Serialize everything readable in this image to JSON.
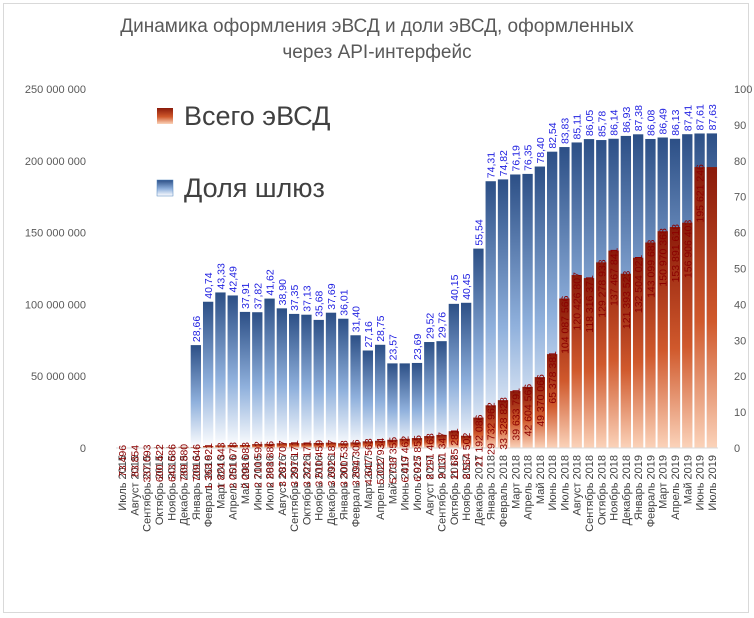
{
  "chart_data": {
    "type": "bar",
    "title_line1": "Динамика оформления эВСД и доли эВСД, оформленных",
    "title_line2": "через API-интерфейс",
    "legend": [
      "Всего эВСД",
      "Доля шлюз"
    ],
    "legend_placement": "top-left",
    "grid": false,
    "y_left": {
      "ylim": [
        0,
        250000000
      ],
      "ticks": [
        "0",
        "50 000 000",
        "100 000 000",
        "150 000 000",
        "200 000 000",
        "250 000 000"
      ]
    },
    "y_right": {
      "ylim": [
        0,
        100
      ],
      "ticks": [
        "0",
        "10",
        "20",
        "30",
        "40",
        "50",
        "60",
        "70",
        "80",
        "90",
        "100"
      ]
    },
    "categories": [
      "Июль 2015",
      "Август 2015",
      "Сентябрь 2015",
      "Октябрь 2015",
      "Ноябрь 2015",
      "Декабрь 2015",
      "Январь 2016",
      "Февраль 2016",
      "Март 2016",
      "Апрель 2016",
      "Май 2016",
      "Июнь 2016",
      "Июль 2016",
      "Август 2016",
      "Сентябрь 2016",
      "Октябрь 2016",
      "Ноябрь 2016",
      "Декабрь 2016",
      "Январь 2017",
      "Февраль 2017",
      "Март 2017",
      "Апрель 2017",
      "Май 2017",
      "Июнь 2017",
      "Июль 2017",
      "Август 2017",
      "Сентябрь 2017",
      "Октябрь 2017",
      "Ноябрь 2017",
      "Декабрь 2017",
      "Январь 2018",
      "Февраль 2018",
      "Март 2018",
      "Апрель 2018",
      "Май 2018",
      "Июнь 2018",
      "Июль 2018",
      "Август 2018",
      "Сентябрь 2018",
      "Октябрь 2018",
      "Ноябрь 2018",
      "Декабрь 2018",
      "Январь 2019",
      "Февраль 2019",
      "Март 2019",
      "Апрель 2019",
      "Май 2019",
      "Июнь 2019",
      "Июль 2019"
    ],
    "series": [
      {
        "name": "Всего эВСД",
        "axis": "left",
        "color": "#c0504d",
        "values": [
          73496,
          83854,
          337093,
          600422,
          643686,
          789880,
          709646,
          1363921,
          1824343,
          2051078,
          2098083,
          2710592,
          2888886,
          3287707,
          3397171,
          3322171,
          3510459,
          3692187,
          3300538,
          3894306,
          4647563,
          5022934,
          5738355,
          6419462,
          6925855,
          8291463,
          9131347,
          11685281,
          8564502,
          21192086,
          29732962,
          33328828,
          39633791,
          42604566,
          49370066,
          65378381,
          104087566,
          120426807,
          118316371,
          129278933,
          137467841,
          121393523,
          132504021,
          143099683,
          150970368,
          153891618,
          156906403,
          195621246,
          195621246
        ],
        "labels": [
          "73 496",
          "83 854",
          "337 093",
          "600 422",
          "643 686",
          "789 880",
          "709 646",
          "1 363 921",
          "1 824 343",
          "2 051 078",
          "2 098 083",
          "2 710 592",
          "2 888 886",
          "3 287 707",
          "3 397 171",
          "3 322 171",
          "3 510 459",
          "3 692 187",
          "3 300 538",
          "3 894 306",
          "4 647 563",
          "5 022 934",
          "5 738 355",
          "6 419 462",
          "6 925 855",
          "8 291 463",
          "9 131 347",
          "11 685 281",
          "8 564 502",
          "21 192 086",
          "29 732 962",
          "33 328 828",
          "39 633 791",
          "42 604 566",
          "49 370 066",
          "65 378 381",
          "104 087 566",
          "120 426 807",
          "118 316 371",
          "129 278 933",
          "137 467 841",
          "121 393 523",
          "132 504 021",
          "143 099 683",
          "150 970 368",
          "153 891 618",
          "156 906 403",
          "195 621 246",
          ""
        ]
      },
      {
        "name": "Доля шлюз",
        "axis": "right",
        "color": "#4f81bd",
        "values": [
          null,
          null,
          null,
          null,
          null,
          null,
          28.66,
          40.74,
          43.33,
          42.49,
          37.91,
          37.82,
          41.62,
          38.9,
          37.35,
          37.13,
          35.68,
          37.69,
          36.01,
          31.4,
          27.16,
          28.75,
          23.57,
          23.57,
          23.69,
          29.52,
          29.76,
          40.15,
          40.45,
          55.54,
          74.31,
          74.82,
          76.19,
          76.35,
          78.4,
          82.54,
          83.83,
          85.11,
          86.05,
          85.78,
          86.14,
          86.93,
          87.38,
          86.08,
          86.49,
          86.13,
          87.41,
          87.61,
          87.63
        ],
        "labels": [
          "",
          "",
          "",
          "",
          "",
          "",
          "28,66",
          "40,74",
          "43,33",
          "42,49",
          "37,91",
          "37,82",
          "41,62",
          "38,90",
          "37,35",
          "37,13",
          "35,68",
          "37,69",
          "36,01",
          "31,40",
          "27,16",
          "28,75",
          "23,57",
          "",
          "23,69",
          "29,52",
          "29,76",
          "40,15",
          "40,45",
          "55,54",
          "74,31",
          "74,82",
          "76,19",
          "76,35",
          "78,40",
          "82,54",
          "83,83",
          "85,11",
          "86,05",
          "85,78",
          "86,14",
          "86,93",
          "87,38",
          "86,08",
          "86,49",
          "86,13",
          "87,41",
          "87,61",
          "87,63"
        ]
      }
    ]
  }
}
